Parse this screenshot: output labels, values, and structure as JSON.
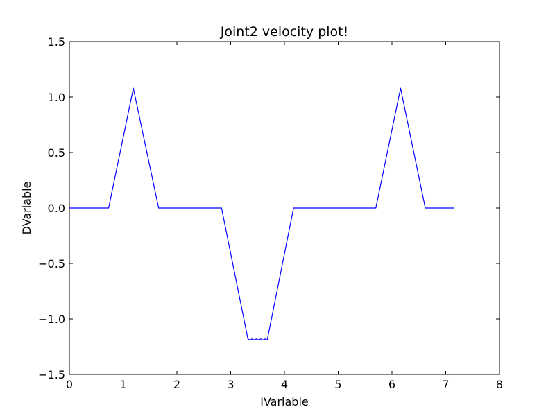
{
  "chart_data": {
    "type": "line",
    "title": "Joint2 velocity plot!",
    "xlabel": "IVariable",
    "ylabel": "DVariable",
    "xlim": [
      0,
      8
    ],
    "ylim": [
      -1.5,
      1.5
    ],
    "xticks": [
      {
        "value": 0,
        "label": "0"
      },
      {
        "value": 1,
        "label": "1"
      },
      {
        "value": 2,
        "label": "2"
      },
      {
        "value": 3,
        "label": "3"
      },
      {
        "value": 4,
        "label": "4"
      },
      {
        "value": 5,
        "label": "5"
      },
      {
        "value": 6,
        "label": "6"
      },
      {
        "value": 7,
        "label": "7"
      },
      {
        "value": 8,
        "label": "8"
      }
    ],
    "yticks": [
      {
        "value": 1.5,
        "label": "1.5"
      },
      {
        "value": 1.0,
        "label": "1.0"
      },
      {
        "value": 0.5,
        "label": "0.5"
      },
      {
        "value": 0.0,
        "label": "0.0"
      },
      {
        "value": -0.5,
        "label": "−0.5"
      },
      {
        "value": -1.0,
        "label": "−1.0"
      },
      {
        "value": -1.5,
        "label": "−1.5"
      }
    ],
    "grid": false,
    "legend": "none",
    "series": [
      {
        "color": "#0000ff",
        "points": [
          [
            0.0,
            0.0
          ],
          [
            0.73,
            0.0
          ],
          [
            1.19,
            1.08
          ],
          [
            1.66,
            0.0
          ],
          [
            2.83,
            0.0
          ],
          [
            3.32,
            -1.18
          ],
          [
            3.36,
            -1.19
          ],
          [
            3.4,
            -1.18
          ],
          [
            3.44,
            -1.19
          ],
          [
            3.48,
            -1.18
          ],
          [
            3.52,
            -1.19
          ],
          [
            3.56,
            -1.18
          ],
          [
            3.6,
            -1.19
          ],
          [
            3.64,
            -1.18
          ],
          [
            3.68,
            -1.19
          ],
          [
            4.17,
            0.0
          ],
          [
            5.7,
            0.0
          ],
          [
            6.16,
            1.08
          ],
          [
            6.62,
            0.0
          ],
          [
            7.15,
            0.0
          ]
        ]
      }
    ]
  }
}
